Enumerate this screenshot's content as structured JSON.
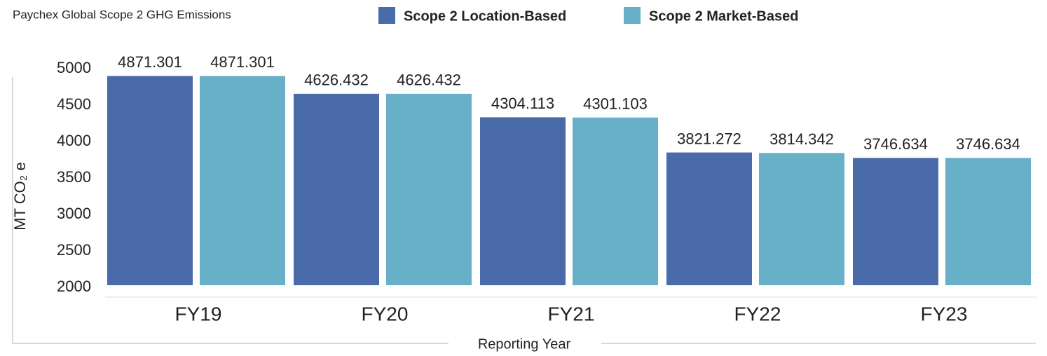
{
  "chart_data": {
    "type": "bar",
    "title": "Paychex Global Scope 2 GHG Emissions",
    "x_label": "Reporting Year",
    "y_label": "MT CO₂ e",
    "categories": [
      "FY19",
      "FY20",
      "FY21",
      "FY22",
      "FY23"
    ],
    "series": [
      {
        "name": "Scope 2 Location-Based",
        "color": "#4a6aaa",
        "values": [
          4871.301,
          4626.432,
          4304.113,
          3821.272,
          3746.634
        ]
      },
      {
        "name": "Scope 2 Market-Based",
        "color": "#67b0c8",
        "values": [
          4871.301,
          4626.432,
          4301.103,
          3814.342,
          3746.634
        ]
      }
    ],
    "ylim": [
      2000,
      5000
    ],
    "yticks": [
      2000,
      2500,
      3000,
      3500,
      4000,
      4500,
      5000
    ]
  }
}
